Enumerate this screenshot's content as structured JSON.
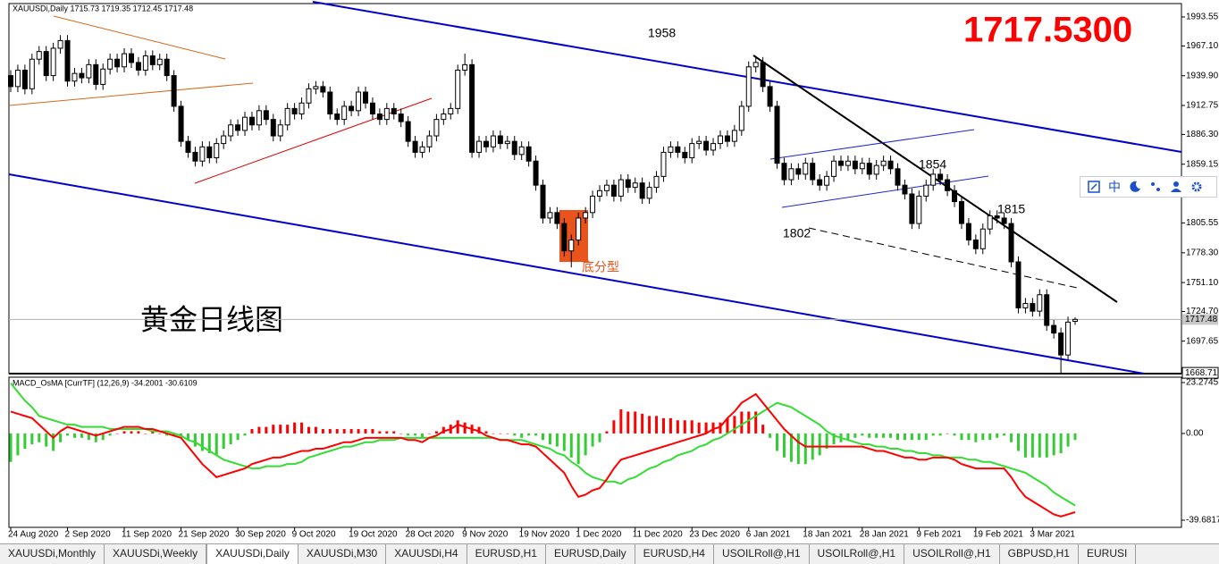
{
  "chart_data": [
    {
      "type": "candlestick",
      "title": "XAUUSDi,Daily  1715.73 1719.35 1712.45 1717.48",
      "price_banner": "1717.5300",
      "chart_label": "黄金日线图",
      "annotations": [
        "1958",
        "1854",
        "1815",
        "1802",
        "底分型"
      ],
      "up_color": "#ffffff",
      "down_color": "#000000",
      "outline_color": "#000000",
      "grid": false,
      "last_price": 1717.48,
      "low_price": 1668.71,
      "ylim": [
        1668,
        2002.5
      ],
      "yticks": [
        1993.55,
        {
          "value": 1967.1,
          "label": "1967.10"
        },
        {
          "value": 1939.9,
          "label": "1939.90"
        },
        1912.75,
        {
          "value": 1886.3,
          "label": "1886.30"
        },
        1859.15,
        1805.55,
        {
          "value": 1778.3,
          "label": "1778.30"
        },
        {
          "value": 1751.1,
          "label": "1751.10"
        },
        {
          "value": 1724.7,
          "label": "1724.70"
        },
        1697.65
      ],
      "categories": [
        "24 Aug 2020",
        null,
        null,
        null,
        null,
        null,
        null,
        null,
        "2 Sep 2020",
        null,
        null,
        null,
        null,
        null,
        null,
        null,
        "11 Sep 2020",
        null,
        null,
        null,
        null,
        null,
        null,
        null,
        "21 Sep 2020",
        null,
        null,
        null,
        null,
        null,
        null,
        null,
        "30 Sep 2020",
        null,
        null,
        null,
        null,
        null,
        null,
        null,
        "9 Oct 2020",
        null,
        null,
        null,
        null,
        null,
        null,
        null,
        "19 Oct 2020",
        null,
        null,
        null,
        null,
        null,
        null,
        null,
        "28 Oct 2020",
        null,
        null,
        null,
        null,
        null,
        null,
        null,
        "9 Nov 2020",
        null,
        null,
        null,
        null,
        null,
        null,
        null,
        "19 Nov 2020",
        null,
        null,
        null,
        null,
        null,
        null,
        null,
        "1 Dec 2020",
        null,
        null,
        null,
        null,
        null,
        null,
        null,
        "11 Dec 2020",
        null,
        null,
        null,
        null,
        null,
        null,
        null,
        "23 Dec 2020",
        null,
        null,
        null,
        null,
        null,
        null,
        null,
        "6 Jan 2021",
        null,
        null,
        null,
        null,
        null,
        null,
        null,
        "18 Jan 2021",
        null,
        null,
        null,
        null,
        null,
        null,
        null,
        "28 Jan 2021",
        null,
        null,
        null,
        null,
        null,
        null,
        null,
        "9 Feb 2021",
        null,
        null,
        null,
        null,
        null,
        null,
        null,
        "19 Feb 2021",
        null,
        null,
        null,
        null,
        null,
        null,
        null,
        "3 Mar 2021",
        null,
        null,
        null,
        null,
        null,
        null
      ],
      "open": [
        1940,
        1930,
        1945,
        1928,
        1955,
        1962,
        1940,
        1965,
        1972,
        1935,
        1942,
        1938,
        1950,
        1932,
        1946,
        1955,
        1948,
        1960,
        1952,
        1945,
        1958,
        1950,
        1955,
        1940,
        1912,
        1880,
        1870,
        1862,
        1875,
        1865,
        1878,
        1885,
        1895,
        1890,
        1902,
        1895,
        1908,
        1900,
        1885,
        1895,
        1910,
        1905,
        1915,
        1928,
        1930,
        1925,
        1905,
        1900,
        1912,
        1908,
        1925,
        1915,
        1905,
        1900,
        1910,
        1905,
        1898,
        1880,
        1870,
        1875,
        1885,
        1900,
        1905,
        1910,
        1945,
        1950,
        1870,
        1880,
        1875,
        1885,
        1878,
        1880,
        1868,
        1875,
        1862,
        1840,
        1810,
        1815,
        1805,
        1780,
        1790,
        1810,
        1815,
        1830,
        1835,
        1840,
        1830,
        1845,
        1838,
        1842,
        1828,
        1838,
        1848,
        1870,
        1875,
        1870,
        1865,
        1878,
        1880,
        1872,
        1878,
        1885,
        1880,
        1890,
        1912,
        1948,
        1952,
        1930,
        1912,
        1860,
        1845,
        1855,
        1850,
        1860,
        1845,
        1840,
        1848,
        1862,
        1858,
        1862,
        1855,
        1860,
        1850,
        1858,
        1862,
        1855,
        1840,
        1832,
        1805,
        1830,
        1840,
        1850,
        1845,
        1835,
        1825,
        1805,
        1790,
        1782,
        1800,
        1812,
        1810,
        1805,
        1770,
        1728,
        1732,
        1725,
        1740,
        1712,
        1705,
        1685,
        1715.73
      ],
      "high": [
        1945,
        1950,
        1950,
        1960,
        1967,
        1967,
        1970,
        1977,
        1977,
        1947,
        1947,
        1955,
        1955,
        1951,
        1960,
        1960,
        1965,
        1965,
        1957,
        1963,
        1963,
        1960,
        1960,
        1945,
        1917,
        1885,
        1875,
        1880,
        1880,
        1883,
        1890,
        1900,
        1900,
        1907,
        1907,
        1913,
        1913,
        1905,
        1900,
        1915,
        1915,
        1920,
        1933,
        1935,
        1935,
        1930,
        1910,
        1917,
        1917,
        1930,
        1930,
        1920,
        1910,
        1915,
        1915,
        1910,
        1903,
        1885,
        1880,
        1890,
        1905,
        1910,
        1915,
        1950,
        1960,
        1955,
        1885,
        1885,
        1890,
        1890,
        1885,
        1885,
        1880,
        1880,
        1867,
        1845,
        1820,
        1820,
        1810,
        1795,
        1815,
        1820,
        1835,
        1840,
        1845,
        1845,
        1850,
        1850,
        1847,
        1847,
        1843,
        1853,
        1875,
        1880,
        1880,
        1875,
        1883,
        1885,
        1885,
        1883,
        1890,
        1890,
        1895,
        1917,
        1953,
        1958,
        1957,
        1935,
        1917,
        1865,
        1860,
        1860,
        1865,
        1865,
        1850,
        1853,
        1867,
        1867,
        1867,
        1867,
        1865,
        1865,
        1863,
        1867,
        1867,
        1860,
        1845,
        1837,
        1835,
        1845,
        1855,
        1855,
        1850,
        1840,
        1830,
        1810,
        1795,
        1805,
        1817,
        1817,
        1815,
        1810,
        1775,
        1737,
        1737,
        1745,
        1745,
        1717,
        1710,
        1720,
        1719.35
      ],
      "low": [
        1925,
        1925,
        1923,
        1923,
        1950,
        1935,
        1935,
        1960,
        1930,
        1930,
        1933,
        1933,
        1927,
        1927,
        1941,
        1943,
        1943,
        1947,
        1940,
        1940,
        1945,
        1945,
        1935,
        1907,
        1875,
        1865,
        1857,
        1857,
        1860,
        1860,
        1873,
        1880,
        1885,
        1885,
        1890,
        1890,
        1895,
        1880,
        1880,
        1890,
        1900,
        1900,
        1910,
        1923,
        1920,
        1900,
        1895,
        1895,
        1903,
        1903,
        1910,
        1900,
        1895,
        1895,
        1900,
        1893,
        1875,
        1865,
        1865,
        1870,
        1880,
        1895,
        1900,
        1905,
        1940,
        1865,
        1865,
        1870,
        1870,
        1873,
        1873,
        1863,
        1863,
        1857,
        1835,
        1805,
        1805,
        1800,
        1775,
        1765,
        1785,
        1805,
        1810,
        1825,
        1830,
        1825,
        1825,
        1833,
        1833,
        1823,
        1823,
        1833,
        1843,
        1865,
        1865,
        1860,
        1860,
        1873,
        1867,
        1867,
        1873,
        1875,
        1875,
        1885,
        1907,
        1943,
        1925,
        1907,
        1855,
        1840,
        1840,
        1845,
        1845,
        1840,
        1835,
        1835,
        1843,
        1853,
        1853,
        1850,
        1850,
        1845,
        1845,
        1853,
        1850,
        1835,
        1827,
        1800,
        1800,
        1825,
        1835,
        1840,
        1830,
        1820,
        1800,
        1785,
        1777,
        1777,
        1795,
        1805,
        1800,
        1765,
        1723,
        1723,
        1720,
        1720,
        1707,
        1700,
        1668.71,
        1680,
        1712.45
      ],
      "close": [
        1930,
        1945,
        1928,
        1955,
        1962,
        1940,
        1965,
        1972,
        1935,
        1942,
        1938,
        1950,
        1932,
        1946,
        1955,
        1948,
        1960,
        1952,
        1945,
        1958,
        1950,
        1955,
        1940,
        1912,
        1880,
        1870,
        1862,
        1875,
        1865,
        1878,
        1885,
        1895,
        1890,
        1902,
        1895,
        1908,
        1900,
        1885,
        1895,
        1910,
        1905,
        1915,
        1928,
        1930,
        1925,
        1905,
        1900,
        1912,
        1908,
        1925,
        1915,
        1905,
        1900,
        1910,
        1905,
        1898,
        1880,
        1870,
        1875,
        1885,
        1900,
        1905,
        1910,
        1945,
        1950,
        1870,
        1880,
        1875,
        1885,
        1878,
        1880,
        1868,
        1875,
        1862,
        1840,
        1810,
        1815,
        1805,
        1780,
        1790,
        1810,
        1815,
        1830,
        1835,
        1840,
        1830,
        1845,
        1838,
        1842,
        1828,
        1838,
        1848,
        1870,
        1875,
        1870,
        1865,
        1878,
        1880,
        1872,
        1878,
        1885,
        1880,
        1890,
        1912,
        1948,
        1952,
        1930,
        1912,
        1860,
        1845,
        1855,
        1850,
        1860,
        1845,
        1840,
        1848,
        1862,
        1858,
        1862,
        1855,
        1860,
        1850,
        1858,
        1862,
        1855,
        1840,
        1832,
        1805,
        1830,
        1840,
        1850,
        1845,
        1835,
        1825,
        1805,
        1790,
        1782,
        1800,
        1812,
        1810,
        1805,
        1770,
        1728,
        1732,
        1725,
        1740,
        1712,
        1705,
        1685,
        1715,
        1717.48
      ]
    },
    {
      "type": "macd",
      "title": "MACD_OsMA [CurrTF] (12,26,9) -34.2001 -30.6109",
      "ylim": [
        -39.6817,
        23.2745
      ],
      "yticks": [
        23.2745,
        {
          "value": 0,
          "label": "0.00"
        },
        -39.6817
      ],
      "histogram": {
        "up_color": "#ff0000",
        "down_color": "#33cc33",
        "values": [
          -13,
          -10,
          -7,
          -5,
          -4,
          -6,
          -8,
          -4,
          -1,
          -2,
          -2,
          -3,
          -4,
          -3,
          -1,
          0,
          1,
          1,
          1,
          0,
          1,
          0,
          -1,
          -1,
          -1,
          -3,
          -6,
          -8,
          -9,
          -10,
          -7,
          -5,
          -3,
          -1,
          2,
          3,
          3,
          4,
          4,
          4,
          5,
          5,
          3,
          3,
          2,
          2,
          2,
          2,
          2,
          2,
          2,
          2,
          1,
          1,
          1,
          0,
          -1,
          -1,
          -2,
          0,
          1,
          3,
          4,
          6,
          5,
          4,
          3,
          1,
          0,
          0,
          0,
          -1,
          -2,
          -1,
          -1,
          -3,
          -5,
          -6,
          -8,
          -11,
          -14,
          -10,
          -6,
          -4,
          1,
          6,
          11,
          10,
          10,
          9,
          8,
          8,
          7,
          7,
          6,
          6,
          6,
          5,
          5,
          5,
          5,
          7,
          8,
          10,
          10,
          10,
          4,
          -2,
          -8,
          -11,
          -13,
          -14,
          -14,
          -12,
          -10,
          -7,
          -5,
          -4,
          -3,
          -2,
          -1,
          -2,
          -2,
          -2,
          -2,
          -3,
          -3,
          -3,
          -3,
          -3,
          -1,
          -1,
          0,
          -1,
          -3,
          -3,
          -4,
          -3,
          -3,
          -2,
          -1,
          -4,
          -8,
          -11,
          -11,
          -11,
          -11,
          -10,
          -9,
          -6,
          -3
        ]
      },
      "macd_line": {
        "color": "#ff0000",
        "values": [
          10,
          9,
          8,
          7,
          4,
          1,
          -2,
          1,
          3,
          2,
          1,
          0,
          -1,
          0,
          1,
          2,
          3,
          3,
          3,
          2,
          2,
          1,
          0,
          -1,
          -2,
          -6,
          -10,
          -14,
          -17,
          -20,
          -19,
          -18,
          -17,
          -16,
          -14,
          -13,
          -12,
          -11,
          -11,
          -10,
          -9,
          -8,
          -8,
          -7,
          -7,
          -6,
          -5,
          -4,
          -4,
          -3,
          -2,
          -2,
          -2,
          -2,
          -2,
          -2,
          -3,
          -3,
          -4,
          -2,
          -1,
          1,
          2,
          4,
          3,
          2,
          1,
          -1,
          -2,
          -3,
          -3,
          -4,
          -5,
          -5,
          -6,
          -9,
          -12,
          -15,
          -18,
          -24,
          -29,
          -28,
          -26,
          -25,
          -21,
          -16,
          -12,
          -11,
          -10,
          -9,
          -8,
          -7,
          -6,
          -5,
          -4,
          -3,
          -2,
          -1,
          0,
          2,
          3,
          7,
          10,
          14,
          16,
          18,
          14,
          10,
          6,
          2,
          -1,
          -4,
          -6,
          -6,
          -6,
          -6,
          -6,
          -6,
          -6,
          -6,
          -6,
          -7,
          -8,
          -8,
          -9,
          -10,
          -11,
          -11,
          -12,
          -12,
          -11,
          -11,
          -11,
          -12,
          -14,
          -15,
          -16,
          -16,
          -16,
          -16,
          -16,
          -20,
          -25,
          -29,
          -31,
          -33,
          -35,
          -37,
          -38,
          -37,
          -36
        ]
      },
      "signal_line": {
        "color": "#33dd33",
        "values": [
          23,
          19,
          15,
          12,
          8,
          7,
          6,
          5,
          4,
          4,
          3,
          3,
          3,
          3,
          2,
          2,
          2,
          2,
          2,
          2,
          1,
          1,
          1,
          0,
          -1,
          -3,
          -4,
          -6,
          -8,
          -10,
          -12,
          -13,
          -14,
          -15,
          -16,
          -16,
          -15,
          -15,
          -15,
          -14,
          -14,
          -13,
          -11,
          -10,
          -9,
          -8,
          -7,
          -6,
          -6,
          -5,
          -4,
          -4,
          -3,
          -3,
          -3,
          -2,
          -2,
          -2,
          -2,
          -2,
          -2,
          -2,
          -2,
          -2,
          -2,
          -2,
          -2,
          -2,
          -2,
          -3,
          -3,
          -3,
          -3,
          -4,
          -5,
          -6,
          -7,
          -9,
          -10,
          -13,
          -15,
          -18,
          -20,
          -21,
          -22,
          -22,
          -23,
          -21,
          -20,
          -18,
          -16,
          -15,
          -13,
          -12,
          -10,
          -9,
          -8,
          -6,
          -5,
          -3,
          -2,
          0,
          2,
          4,
          6,
          8,
          10,
          12,
          14,
          13,
          12,
          10,
          8,
          6,
          4,
          1,
          -1,
          -2,
          -3,
          -4,
          -5,
          -5,
          -6,
          -6,
          -7,
          -7,
          -8,
          -8,
          -9,
          -9,
          -10,
          -10,
          -11,
          -11,
          -11,
          -12,
          -12,
          -13,
          -13,
          -14,
          -15,
          -16,
          -17,
          -18,
          -20,
          -22,
          -24,
          -27,
          -29,
          -31,
          -33
        ]
      }
    }
  ],
  "tabs": [
    "XAUUSDi,Monthly",
    "XAUUSDi,Weekly",
    "XAUUSDi,Daily",
    "XAUUSDi,M30",
    "XAUUSDi,H4",
    "EURUSD,H1",
    "EURUSD,Daily",
    "EURUSD,H4",
    "USOILRoll@,H1",
    "USOILRoll@,H1",
    "USOILRoll@,H1",
    "GBPUSD,H1",
    "EURUSI"
  ],
  "active_tab": 2,
  "toolbar": {
    "label": "中"
  }
}
